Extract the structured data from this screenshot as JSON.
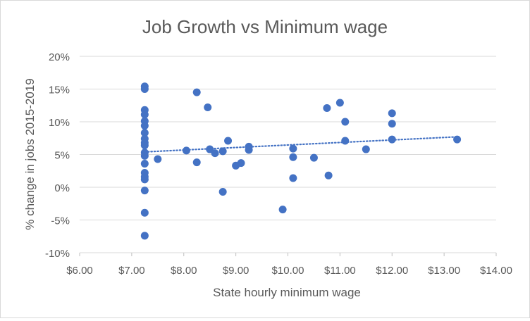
{
  "chart_data": {
    "type": "scatter",
    "title": "Job Growth vs Minimum wage",
    "xlabel": "State hourly minimum wage",
    "ylabel": "% change in jobs 2015-2019",
    "xlim": [
      6,
      14
    ],
    "ylim": [
      -10,
      20
    ],
    "x_ticks": [
      6,
      7,
      8,
      9,
      10,
      11,
      12,
      13,
      14
    ],
    "x_tick_labels": [
      "$6.00",
      "$7.00",
      "$8.00",
      "$9.00",
      "$10.00",
      "$11.00",
      "$12.00",
      "$13.00",
      "$14.00"
    ],
    "y_ticks": [
      -10,
      -5,
      0,
      5,
      10,
      15,
      20
    ],
    "y_tick_labels": [
      "-10%",
      "-5%",
      "0%",
      "5%",
      "10%",
      "15%",
      "20%"
    ],
    "grid": "horizontal",
    "legend": "none",
    "marker_color": "#4472c4",
    "trendline": {
      "type": "linear",
      "style": "dotted",
      "color": "#4472c4",
      "x": [
        7.25,
        13.25
      ],
      "y": [
        5.4,
        7.7
      ]
    },
    "points": [
      {
        "x": 7.25,
        "y": 15.4
      },
      {
        "x": 7.25,
        "y": 15.0
      },
      {
        "x": 7.25,
        "y": 11.8
      },
      {
        "x": 7.25,
        "y": 11.1
      },
      {
        "x": 7.25,
        "y": 10.1
      },
      {
        "x": 7.25,
        "y": 9.4
      },
      {
        "x": 7.25,
        "y": 8.3
      },
      {
        "x": 7.25,
        "y": 7.4
      },
      {
        "x": 7.25,
        "y": 6.8
      },
      {
        "x": 7.25,
        "y": 6.4
      },
      {
        "x": 7.25,
        "y": 5.3
      },
      {
        "x": 7.25,
        "y": 4.8
      },
      {
        "x": 7.25,
        "y": 3.6
      },
      {
        "x": 7.25,
        "y": 2.2
      },
      {
        "x": 7.25,
        "y": 1.6
      },
      {
        "x": 7.25,
        "y": 1.2
      },
      {
        "x": 7.25,
        "y": -0.5
      },
      {
        "x": 7.25,
        "y": -3.9
      },
      {
        "x": 7.25,
        "y": -7.4
      },
      {
        "x": 7.5,
        "y": 4.3
      },
      {
        "x": 8.05,
        "y": 5.6
      },
      {
        "x": 8.25,
        "y": 14.5
      },
      {
        "x": 8.25,
        "y": 3.8
      },
      {
        "x": 8.46,
        "y": 12.2
      },
      {
        "x": 8.5,
        "y": 5.8
      },
      {
        "x": 8.6,
        "y": 5.2
      },
      {
        "x": 8.75,
        "y": 5.5
      },
      {
        "x": 8.75,
        "y": -0.7
      },
      {
        "x": 8.85,
        "y": 7.1
      },
      {
        "x": 9.0,
        "y": 3.3
      },
      {
        "x": 9.1,
        "y": 3.7
      },
      {
        "x": 9.25,
        "y": 6.2
      },
      {
        "x": 9.25,
        "y": 5.7
      },
      {
        "x": 9.9,
        "y": -3.4
      },
      {
        "x": 10.1,
        "y": 5.9
      },
      {
        "x": 10.1,
        "y": 4.6
      },
      {
        "x": 10.1,
        "y": 1.4
      },
      {
        "x": 10.5,
        "y": 4.5
      },
      {
        "x": 10.75,
        "y": 12.1
      },
      {
        "x": 10.78,
        "y": 1.8
      },
      {
        "x": 11.0,
        "y": 12.9
      },
      {
        "x": 11.1,
        "y": 10.0
      },
      {
        "x": 11.1,
        "y": 7.1
      },
      {
        "x": 11.5,
        "y": 5.8
      },
      {
        "x": 12.0,
        "y": 11.3
      },
      {
        "x": 12.0,
        "y": 9.7
      },
      {
        "x": 12.0,
        "y": 7.3
      },
      {
        "x": 13.25,
        "y": 7.3
      }
    ]
  }
}
